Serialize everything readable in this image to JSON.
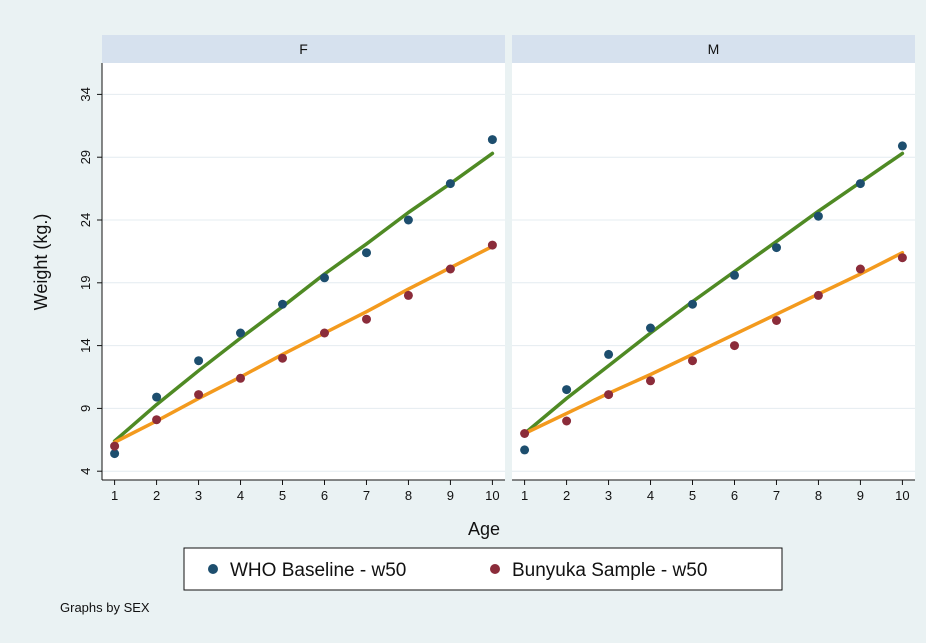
{
  "chart_data": {
    "type": "scatter",
    "x_title": "Age",
    "y_title": "Weight (kg.)",
    "x_ticks": [
      1,
      2,
      3,
      4,
      5,
      6,
      7,
      8,
      9,
      10
    ],
    "y_ticks": [
      4,
      9,
      14,
      19,
      24,
      29,
      34
    ],
    "xlim": [
      0.7,
      10.3
    ],
    "ylim": [
      3.3,
      36.5
    ],
    "grid": true,
    "legend_position": "bottom",
    "note": "Graphs by SEX",
    "series_styles": [
      {
        "name": "WHO Baseline - w50",
        "marker_color": "#1d4e6e",
        "line_color": "#4f8a24"
      },
      {
        "name": "Bunyuka Sample - w50",
        "marker_color": "#8b2c3a",
        "line_color": "#f39a1e"
      }
    ],
    "panels": [
      {
        "label": "F",
        "series": [
          {
            "name": "WHO Baseline - w50",
            "points": [
              [
                1,
                5.4
              ],
              [
                2,
                9.9
              ],
              [
                3,
                12.8
              ],
              [
                4,
                15.0
              ],
              [
                5,
                17.3
              ],
              [
                6,
                19.4
              ],
              [
                7,
                21.4
              ],
              [
                8,
                24.0
              ],
              [
                9,
                26.9
              ],
              [
                10,
                30.4
              ]
            ],
            "fit": [
              [
                1,
                6.4
              ],
              [
                2,
                9.3
              ],
              [
                3,
                12.0
              ],
              [
                4,
                14.6
              ],
              [
                5,
                17.1
              ],
              [
                6,
                19.7
              ],
              [
                7,
                22.1
              ],
              [
                8,
                24.6
              ],
              [
                9,
                26.9
              ],
              [
                10,
                29.3
              ]
            ]
          },
          {
            "name": "Bunyuka Sample - w50",
            "points": [
              [
                1,
                6.0
              ],
              [
                2,
                8.1
              ],
              [
                3,
                10.1
              ],
              [
                4,
                11.4
              ],
              [
                5,
                13.0
              ],
              [
                6,
                15.0
              ],
              [
                7,
                16.1
              ],
              [
                8,
                18.0
              ],
              [
                9,
                20.1
              ],
              [
                10,
                22.0
              ]
            ],
            "fit": [
              [
                1,
                6.3
              ],
              [
                2,
                8.0
              ],
              [
                3,
                9.8
              ],
              [
                4,
                11.5
              ],
              [
                5,
                13.3
              ],
              [
                6,
                15.0
              ],
              [
                7,
                16.7
              ],
              [
                8,
                18.5
              ],
              [
                9,
                20.2
              ],
              [
                10,
                21.9
              ]
            ]
          }
        ]
      },
      {
        "label": "M",
        "series": [
          {
            "name": "WHO Baseline - w50",
            "points": [
              [
                1,
                5.7
              ],
              [
                2,
                10.5
              ],
              [
                3,
                13.3
              ],
              [
                4,
                15.4
              ],
              [
                5,
                17.3
              ],
              [
                6,
                19.6
              ],
              [
                7,
                21.8
              ],
              [
                8,
                24.3
              ],
              [
                9,
                26.9
              ],
              [
                10,
                29.9
              ]
            ],
            "fit": [
              [
                1,
                7.0
              ],
              [
                2,
                9.8
              ],
              [
                3,
                12.4
              ],
              [
                4,
                15.0
              ],
              [
                5,
                17.5
              ],
              [
                6,
                19.9
              ],
              [
                7,
                22.3
              ],
              [
                8,
                24.7
              ],
              [
                9,
                27.0
              ],
              [
                10,
                29.3
              ]
            ]
          },
          {
            "name": "Bunyuka Sample - w50",
            "points": [
              [
                1,
                7.0
              ],
              [
                2,
                8.0
              ],
              [
                3,
                10.1
              ],
              [
                4,
                11.2
              ],
              [
                5,
                12.8
              ],
              [
                6,
                14.0
              ],
              [
                7,
                16.0
              ],
              [
                8,
                18.0
              ],
              [
                9,
                20.1
              ],
              [
                10,
                21.0
              ]
            ],
            "fit": [
              [
                1,
                7.0
              ],
              [
                2,
                8.6
              ],
              [
                3,
                10.2
              ],
              [
                4,
                11.7
              ],
              [
                5,
                13.3
              ],
              [
                6,
                14.9
              ],
              [
                7,
                16.5
              ],
              [
                8,
                18.1
              ],
              [
                9,
                19.7
              ],
              [
                10,
                21.4
              ]
            ]
          }
        ]
      }
    ]
  }
}
